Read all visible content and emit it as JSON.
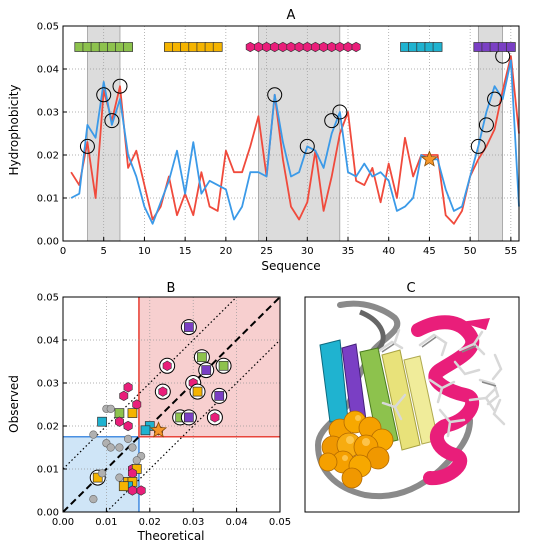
{
  "panel_a": {
    "label": "A",
    "xlabel": "Sequence",
    "ylabel": "Hydrophobicity",
    "xlim": [
      0,
      56
    ],
    "ylim": [
      0,
      0.05
    ],
    "xticks": [
      "0",
      "5",
      "10",
      "15",
      "20",
      "25",
      "30",
      "35",
      "40",
      "45",
      "50",
      "55"
    ],
    "yticks": [
      "0.00",
      "0.01",
      "0.02",
      "0.03",
      "0.04",
      "0.05"
    ],
    "shaded_regions": [
      [
        3,
        7
      ],
      [
        24,
        34
      ],
      [
        51,
        54
      ]
    ],
    "segment_bars": [
      {
        "type": "square",
        "color": "#8dc24d",
        "start": 2,
        "end": 8,
        "count": 7
      },
      {
        "type": "square",
        "color": "#f5b400",
        "start": 13,
        "end": 19,
        "count": 7
      },
      {
        "type": "hexagon",
        "color": "#e91e7a",
        "start": 23,
        "end": 36,
        "count": 14
      },
      {
        "type": "square",
        "color": "#1fb3d0",
        "start": 42,
        "end": 46,
        "count": 5
      },
      {
        "type": "square",
        "color": "#7a3fc4",
        "start": 51,
        "end": 55,
        "count": 5
      }
    ]
  },
  "panel_b": {
    "label": "B",
    "xlabel": "Theoretical",
    "ylabel": "Observed",
    "xlim": [
      0,
      0.05
    ],
    "ylim": [
      0,
      0.05
    ],
    "xticks": [
      "0.00",
      "0.01",
      "0.02",
      "0.03",
      "0.04",
      "0.05"
    ],
    "yticks": [
      "0.00",
      "0.01",
      "0.02",
      "0.03",
      "0.04",
      "0.05"
    ],
    "blue_region": {
      "x_max": 0.0175,
      "y_max": 0.0175,
      "color": "#cfe5f7",
      "edge": "#4a90e2"
    },
    "red_region": {
      "x_min": 0.0175,
      "y_min": 0.0175,
      "color": "#f7cfcf",
      "edge": "#e8463c"
    }
  },
  "panel_c": {
    "label": "C"
  },
  "colors": {
    "red_line": "#f04a3c",
    "blue_line": "#3b9ae8",
    "green": "#8dc24d",
    "orange": "#f5b400",
    "magenta": "#e91e7a",
    "cyan": "#1fb3d0",
    "purple": "#7a3fc4",
    "grey_dot": "#b0b0b0",
    "star": "#f5962a"
  },
  "chart_data": [
    {
      "type": "line",
      "title": "A",
      "xlabel": "Sequence",
      "ylabel": "Hydrophobicity",
      "xlim": [
        0,
        56
      ],
      "ylim": [
        0,
        0.05
      ],
      "grid": true,
      "x": [
        1,
        2,
        3,
        4,
        5,
        6,
        7,
        8,
        9,
        10,
        11,
        12,
        13,
        14,
        15,
        16,
        17,
        18,
        19,
        20,
        21,
        22,
        23,
        24,
        25,
        26,
        27,
        28,
        29,
        30,
        31,
        32,
        33,
        34,
        35,
        36,
        37,
        38,
        39,
        40,
        41,
        42,
        43,
        44,
        45,
        46,
        47,
        48,
        49,
        50,
        51,
        52,
        53,
        54,
        55,
        56
      ],
      "series": [
        {
          "values": [
            0.016,
            0.013,
            0.023,
            0.01,
            0.035,
            0.028,
            0.036,
            0.017,
            0.021,
            0.013,
            0.005,
            0.008,
            0.015,
            0.006,
            0.011,
            0.006,
            0.016,
            0.008,
            0.007,
            0.021,
            0.016,
            0.016,
            0.022,
            0.029,
            0.015,
            0.034,
            0.019,
            0.008,
            0.005,
            0.009,
            0.021,
            0.007,
            0.015,
            0.025,
            0.03,
            0.014,
            0.013,
            0.017,
            0.009,
            0.018,
            0.01,
            0.024,
            0.015,
            0.02,
            0.02,
            0.02,
            0.006,
            0.004,
            0.007,
            0.015,
            0.019,
            0.022,
            0.026,
            0.035,
            0.043,
            0.025
          ]
        },
        {
          "values": [
            0.01,
            0.011,
            0.027,
            0.024,
            0.037,
            0.027,
            0.033,
            0.02,
            0.015,
            0.008,
            0.004,
            0.009,
            0.014,
            0.021,
            0.011,
            0.023,
            0.011,
            0.014,
            0.013,
            0.012,
            0.005,
            0.008,
            0.016,
            0.016,
            0.015,
            0.034,
            0.023,
            0.015,
            0.016,
            0.022,
            0.021,
            0.017,
            0.025,
            0.03,
            0.016,
            0.015,
            0.018,
            0.015,
            0.016,
            0.014,
            0.007,
            0.008,
            0.01,
            0.02,
            0.019,
            0.019,
            0.012,
            0.007,
            0.008,
            0.015,
            0.022,
            0.03,
            0.036,
            0.033,
            0.042,
            0.008
          ]
        }
      ],
      "circled_points": [
        {
          "x": 3,
          "y": 0.022
        },
        {
          "x": 5,
          "y": 0.034
        },
        {
          "x": 6,
          "y": 0.028
        },
        {
          "x": 7,
          "y": 0.036
        },
        {
          "x": 26,
          "y": 0.034
        },
        {
          "x": 30,
          "y": 0.022
        },
        {
          "x": 33,
          "y": 0.028
        },
        {
          "x": 34,
          "y": 0.03
        },
        {
          "x": 51,
          "y": 0.022
        },
        {
          "x": 52,
          "y": 0.027
        },
        {
          "x": 53,
          "y": 0.033
        },
        {
          "x": 54,
          "y": 0.043
        }
      ],
      "star_point": {
        "x": 45,
        "y": 0.019
      }
    },
    {
      "type": "scatter",
      "title": "B",
      "xlabel": "Theoretical",
      "ylabel": "Observed",
      "xlim": [
        0,
        0.05
      ],
      "ylim": [
        0,
        0.05
      ],
      "grid": true,
      "identity_line": true,
      "band_offset": 0.01,
      "points": [
        {
          "x": 0.029,
          "y": 0.043,
          "shape": "square",
          "color": "purple",
          "circled": true
        },
        {
          "x": 0.032,
          "y": 0.036,
          "shape": "square",
          "color": "green",
          "circled": true
        },
        {
          "x": 0.033,
          "y": 0.033,
          "shape": "square",
          "color": "purple",
          "circled": true
        },
        {
          "x": 0.037,
          "y": 0.034,
          "shape": "square",
          "color": "green",
          "circled": true
        },
        {
          "x": 0.024,
          "y": 0.034,
          "shape": "hexagon",
          "color": "magenta",
          "circled": true
        },
        {
          "x": 0.03,
          "y": 0.03,
          "shape": "hexagon",
          "color": "magenta",
          "circled": true
        },
        {
          "x": 0.031,
          "y": 0.028,
          "shape": "square",
          "color": "orange",
          "circled": true
        },
        {
          "x": 0.023,
          "y": 0.028,
          "shape": "hexagon",
          "color": "magenta",
          "circled": true
        },
        {
          "x": 0.036,
          "y": 0.027,
          "shape": "square",
          "color": "purple",
          "circled": true
        },
        {
          "x": 0.027,
          "y": 0.022,
          "shape": "square",
          "color": "green",
          "circled": true
        },
        {
          "x": 0.029,
          "y": 0.022,
          "shape": "square",
          "color": "purple",
          "circled": true
        },
        {
          "x": 0.035,
          "y": 0.022,
          "shape": "hexagon",
          "color": "magenta",
          "circled": true
        },
        {
          "x": 0.015,
          "y": 0.029,
          "shape": "hexagon",
          "color": "magenta",
          "circled": false
        },
        {
          "x": 0.014,
          "y": 0.027,
          "shape": "hexagon",
          "color": "magenta",
          "circled": false
        },
        {
          "x": 0.017,
          "y": 0.025,
          "shape": "hexagon",
          "color": "magenta",
          "circled": false
        },
        {
          "x": 0.01,
          "y": 0.024,
          "shape": "circle",
          "color": "grey",
          "circled": false
        },
        {
          "x": 0.011,
          "y": 0.024,
          "shape": "circle",
          "color": "grey",
          "circled": false
        },
        {
          "x": 0.013,
          "y": 0.023,
          "shape": "square",
          "color": "green",
          "circled": false
        },
        {
          "x": 0.016,
          "y": 0.023,
          "shape": "square",
          "color": "orange",
          "circled": false
        },
        {
          "x": 0.009,
          "y": 0.021,
          "shape": "square",
          "color": "cyan",
          "circled": false
        },
        {
          "x": 0.013,
          "y": 0.021,
          "shape": "hexagon",
          "color": "magenta",
          "circled": false
        },
        {
          "x": 0.015,
          "y": 0.02,
          "shape": "hexagon",
          "color": "magenta",
          "circled": false
        },
        {
          "x": 0.02,
          "y": 0.02,
          "shape": "square",
          "color": "cyan",
          "circled": false
        },
        {
          "x": 0.019,
          "y": 0.019,
          "shape": "square",
          "color": "cyan",
          "circled": false
        },
        {
          "x": 0.022,
          "y": 0.019,
          "shape": "hexagon",
          "color": "magenta",
          "circled": false
        },
        {
          "x": 0.007,
          "y": 0.018,
          "shape": "circle",
          "color": "grey",
          "circled": false
        },
        {
          "x": 0.015,
          "y": 0.017,
          "shape": "circle",
          "color": "grey",
          "circled": false
        },
        {
          "x": 0.01,
          "y": 0.016,
          "shape": "circle",
          "color": "grey",
          "circled": false
        },
        {
          "x": 0.011,
          "y": 0.015,
          "shape": "circle",
          "color": "grey",
          "circled": false
        },
        {
          "x": 0.013,
          "y": 0.015,
          "shape": "circle",
          "color": "grey",
          "circled": false
        },
        {
          "x": 0.016,
          "y": 0.015,
          "shape": "circle",
          "color": "grey",
          "circled": false
        },
        {
          "x": 0.018,
          "y": 0.013,
          "shape": "circle",
          "color": "grey",
          "circled": false
        },
        {
          "x": 0.017,
          "y": 0.012,
          "shape": "circle",
          "color": "grey",
          "circled": false
        },
        {
          "x": 0.016,
          "y": 0.01,
          "shape": "hexagon",
          "color": "magenta",
          "circled": false
        },
        {
          "x": 0.017,
          "y": 0.01,
          "shape": "square",
          "color": "orange",
          "circled": false
        },
        {
          "x": 0.016,
          "y": 0.009,
          "shape": "hexagon",
          "color": "magenta",
          "circled": false
        },
        {
          "x": 0.008,
          "y": 0.008,
          "shape": "square",
          "color": "orange",
          "circled": true
        },
        {
          "x": 0.009,
          "y": 0.009,
          "shape": "circle",
          "color": "grey",
          "circled": false
        },
        {
          "x": 0.013,
          "y": 0.008,
          "shape": "circle",
          "color": "grey",
          "circled": false
        },
        {
          "x": 0.015,
          "y": 0.007,
          "shape": "square",
          "color": "orange",
          "circled": false
        },
        {
          "x": 0.016,
          "y": 0.007,
          "shape": "square",
          "color": "orange",
          "circled": false
        },
        {
          "x": 0.015,
          "y": 0.006,
          "shape": "square",
          "color": "cyan",
          "circled": false
        },
        {
          "x": 0.014,
          "y": 0.006,
          "shape": "square",
          "color": "orange",
          "circled": false
        },
        {
          "x": 0.007,
          "y": 0.003,
          "shape": "circle",
          "color": "grey",
          "circled": false
        },
        {
          "x": 0.016,
          "y": 0.005,
          "shape": "hexagon",
          "color": "magenta",
          "circled": false
        },
        {
          "x": 0.018,
          "y": 0.005,
          "shape": "hexagon",
          "color": "magenta",
          "circled": false
        }
      ],
      "star_point": {
        "x": 0.022,
        "y": 0.019
      }
    }
  ]
}
